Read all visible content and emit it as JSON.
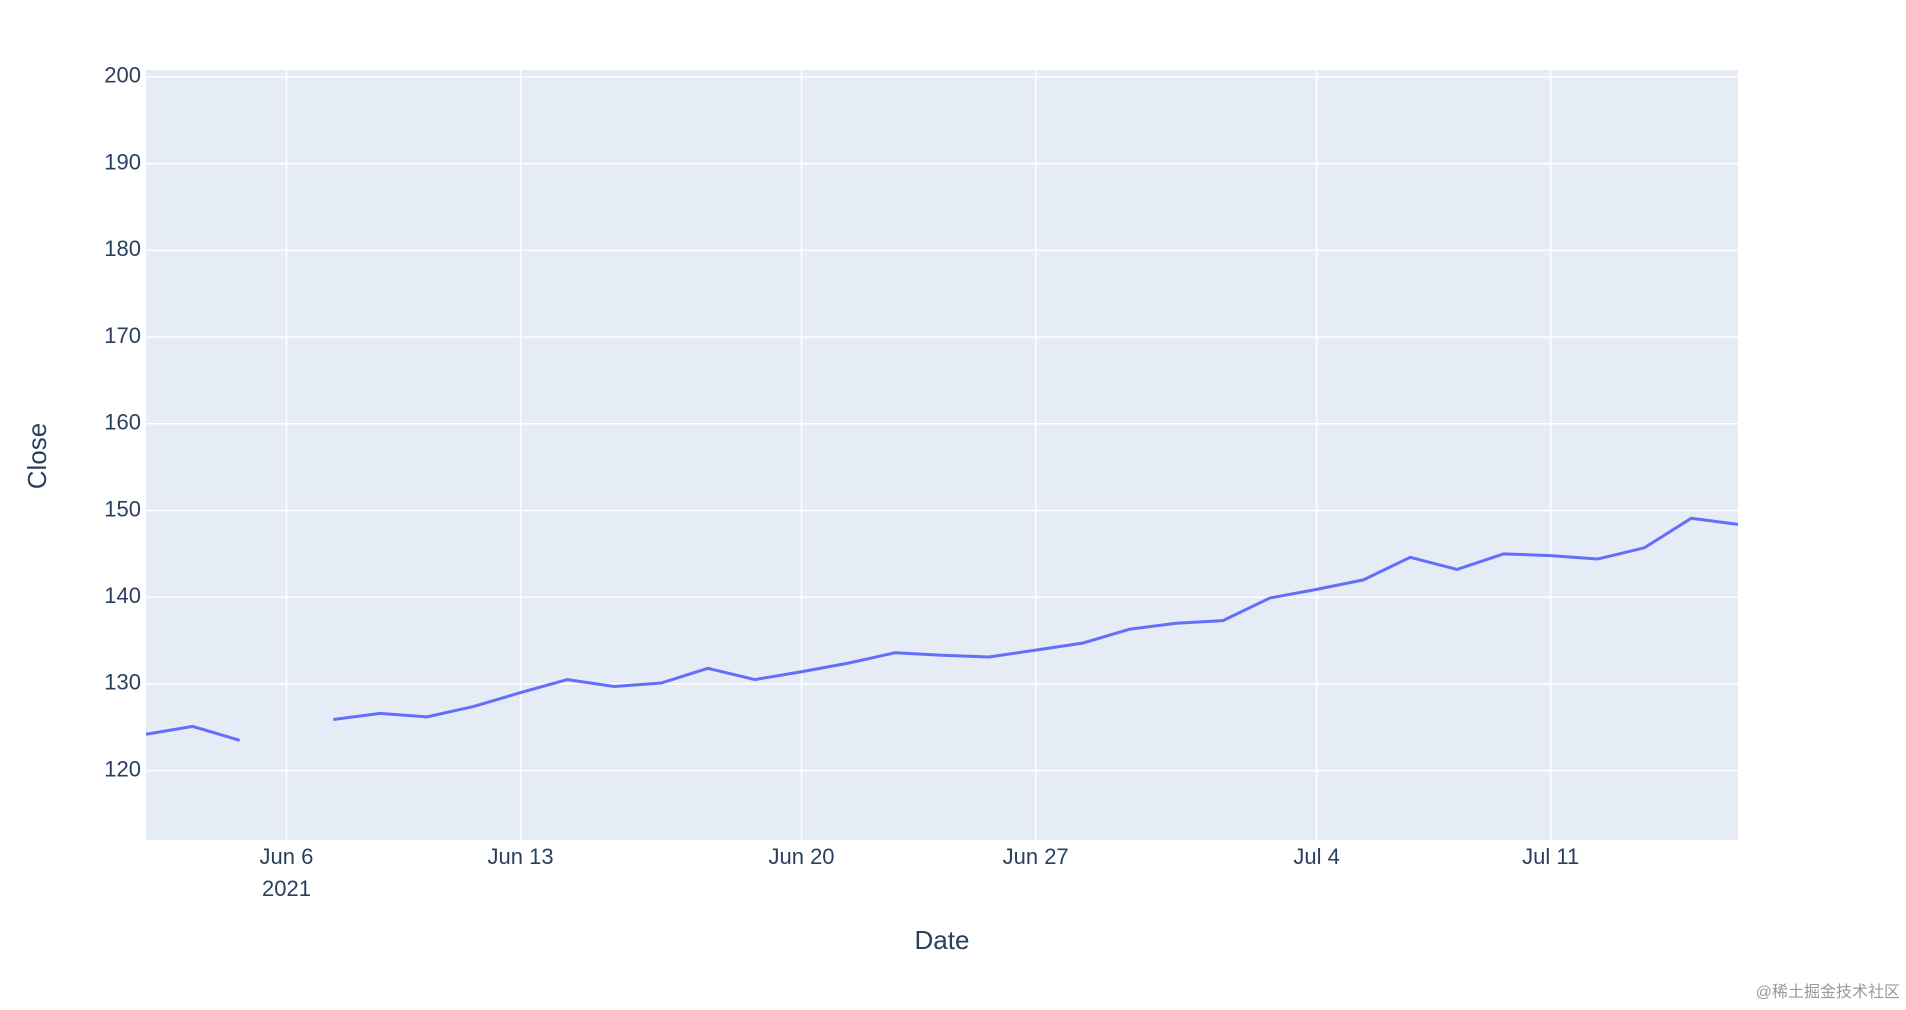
{
  "chart_data": {
    "type": "line",
    "x_title": "Date",
    "y_title": "Close",
    "categories": [
      null,
      null,
      null,
      "Jun 6",
      null,
      null,
      null,
      null,
      "Jun 13",
      null,
      null,
      null,
      null,
      null,
      "Jun 20",
      null,
      null,
      null,
      null,
      "Jun 27",
      null,
      null,
      null,
      null,
      null,
      "Jul 4",
      null,
      null,
      null,
      null,
      "Jul 11",
      null,
      null,
      null,
      null
    ],
    "x_tick_year": "2021",
    "series": [
      {
        "name": "Close",
        "color": "#636efa",
        "values": [
          124.2,
          125.1,
          123.5,
          null,
          125.9,
          126.6,
          126.2,
          127.4,
          129.0,
          130.5,
          129.7,
          130.1,
          131.8,
          130.5,
          131.4,
          132.4,
          133.6,
          133.3,
          133.1,
          133.9,
          134.7,
          136.3,
          137.0,
          137.3,
          139.9,
          140.9,
          142.0,
          144.6,
          143.2,
          145.0,
          144.8,
          144.4,
          145.7,
          149.1,
          148.4
        ]
      }
    ],
    "ylim": [
      112,
      200.8
    ],
    "yticks": [
      120,
      130,
      140,
      150,
      160,
      170,
      180,
      190,
      200
    ],
    "grid": true,
    "background": "#e5ecf6",
    "watermark": "@稀土掘金技术社区"
  }
}
